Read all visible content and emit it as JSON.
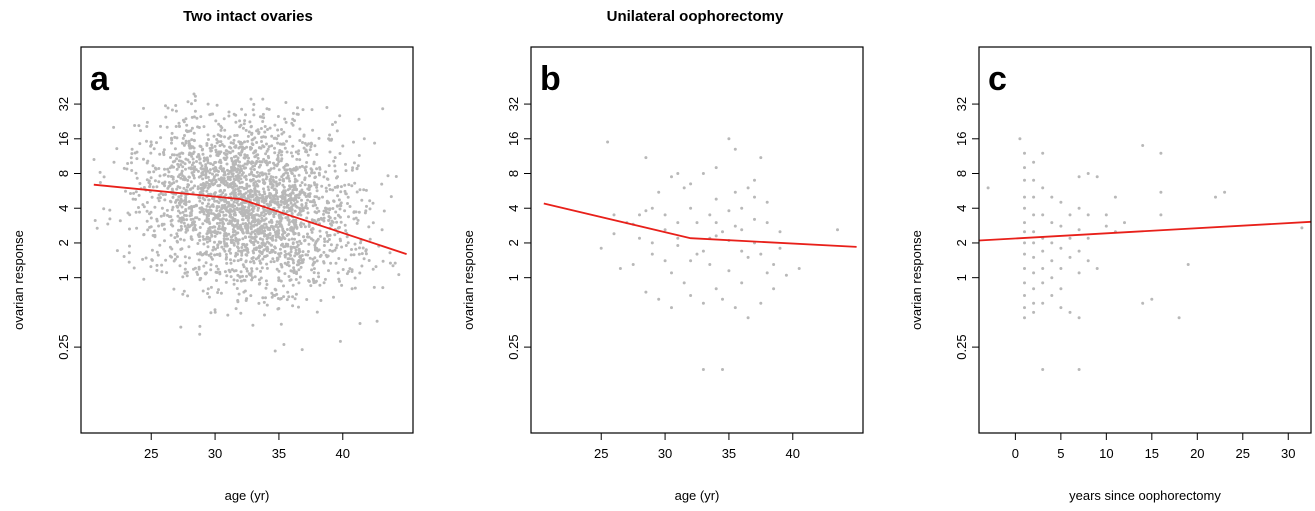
{
  "titles": {
    "left": "Two intact ovaries",
    "right": "Unilateral oophorectomy"
  },
  "colors": {
    "points": "#b8b8b8",
    "trend": "#e8201a",
    "frame": "#000000"
  },
  "chart_data": [
    {
      "type": "scatter",
      "panel": "a",
      "xlabel": "age (yr)",
      "ylabel": "ovarian response",
      "y_scale": "log2",
      "xlim": [
        19.5,
        45.5
      ],
      "ylim": [
        0.045,
        100
      ],
      "x_ticks": [
        25,
        30,
        35,
        40
      ],
      "x_tick_labels": [
        "25",
        "30",
        "35",
        "40"
      ],
      "y_ticks": [
        0.25,
        1,
        2,
        4,
        8,
        16,
        32
      ],
      "y_tick_labels": [
        "0.25",
        "1",
        "2",
        "4",
        "8",
        "16",
        "32"
      ],
      "grid": false,
      "point_cloud": {
        "n": 2600,
        "x_center": 32.5,
        "x_sd": 4.2,
        "log2y_center": 2.1,
        "log2y_sd": 1.25,
        "x_range": [
          20.5,
          45
        ],
        "y_range": [
          0.15,
          40
        ]
      },
      "points": [],
      "trend": {
        "x": [
          20.5,
          32,
          45
        ],
        "y": [
          6.4,
          4.8,
          1.6
        ]
      }
    },
    {
      "type": "scatter",
      "panel": "b",
      "xlabel": "age (yr)",
      "ylabel": "ovarian response",
      "y_scale": "log2",
      "xlim": [
        19.5,
        45.5
      ],
      "ylim": [
        0.045,
        100
      ],
      "x_ticks": [
        25,
        30,
        35,
        40
      ],
      "x_tick_labels": [
        "25",
        "30",
        "35",
        "40"
      ],
      "y_ticks": [
        0.25,
        1,
        2,
        4,
        8,
        16,
        32
      ],
      "y_tick_labels": [
        "0.25",
        "1",
        "2",
        "4",
        "8",
        "16",
        "32"
      ],
      "grid": false,
      "points": [
        [
          25.5,
          15
        ],
        [
          28.5,
          11
        ],
        [
          29.5,
          5.5
        ],
        [
          30.5,
          7.5
        ],
        [
          31,
          8
        ],
        [
          31.5,
          6
        ],
        [
          32,
          6.5
        ],
        [
          33,
          8
        ],
        [
          34,
          9
        ],
        [
          35,
          16
        ],
        [
          35.5,
          13
        ],
        [
          36.5,
          6
        ],
        [
          37,
          5
        ],
        [
          37.5,
          11
        ],
        [
          26,
          3.5
        ],
        [
          27,
          3
        ],
        [
          28,
          3.5
        ],
        [
          28.5,
          3.8
        ],
        [
          29,
          4
        ],
        [
          30,
          3.5
        ],
        [
          31,
          3
        ],
        [
          32,
          4
        ],
        [
          32.5,
          3
        ],
        [
          33.5,
          3.5
        ],
        [
          34,
          3
        ],
        [
          35,
          3.8
        ],
        [
          36,
          4
        ],
        [
          37,
          3.2
        ],
        [
          38,
          4.5
        ],
        [
          25,
          1.8
        ],
        [
          26.5,
          1.2
        ],
        [
          27.5,
          1.3
        ],
        [
          28,
          2.2
        ],
        [
          29,
          1.6
        ],
        [
          30,
          1.4
        ],
        [
          31,
          1.9
        ],
        [
          32,
          1.4
        ],
        [
          33,
          1.7
        ],
        [
          33.5,
          2.2
        ],
        [
          34.5,
          2.5
        ],
        [
          35,
          2.1
        ],
        [
          35.5,
          2.8
        ],
        [
          36,
          1.7
        ],
        [
          36.5,
          1.5
        ],
        [
          37.5,
          1.6
        ],
        [
          38.5,
          1.3
        ],
        [
          39,
          2.5
        ],
        [
          40.5,
          1.2
        ],
        [
          43.5,
          2.6
        ],
        [
          28.5,
          0.75
        ],
        [
          29.5,
          0.65
        ],
        [
          30.5,
          0.55
        ],
        [
          31.5,
          0.9
        ],
        [
          32,
          0.7
        ],
        [
          33,
          0.6
        ],
        [
          34,
          0.8
        ],
        [
          34.5,
          0.65
        ],
        [
          35.5,
          0.55
        ],
        [
          36,
          0.9
        ],
        [
          36.5,
          0.45
        ],
        [
          37.5,
          0.6
        ],
        [
          38.5,
          0.8
        ],
        [
          33,
          0.16
        ],
        [
          34.5,
          0.16
        ],
        [
          30,
          2.6
        ],
        [
          34,
          2.3
        ],
        [
          37,
          2.0
        ],
        [
          38,
          1.1
        ],
        [
          39.5,
          1.05
        ],
        [
          26,
          2.4
        ],
        [
          29,
          2.0
        ],
        [
          31,
          2.2
        ],
        [
          32.5,
          1.6
        ],
        [
          33.5,
          1.3
        ],
        [
          35,
          1.15
        ],
        [
          36,
          2.6
        ],
        [
          38,
          3.0
        ],
        [
          39,
          1.8
        ],
        [
          27.5,
          2.9
        ],
        [
          30.5,
          1.1
        ],
        [
          34,
          4.8
        ],
        [
          35.5,
          5.5
        ],
        [
          37,
          7
        ]
      ],
      "trend": {
        "x": [
          20.5,
          32,
          45
        ],
        "y": [
          4.4,
          2.2,
          1.85
        ]
      }
    },
    {
      "type": "scatter",
      "panel": "c",
      "xlabel": "years since oophorectomy",
      "ylabel": "ovarian response",
      "y_scale": "log2",
      "xlim": [
        -4,
        32.5
      ],
      "ylim": [
        0.045,
        100
      ],
      "x_ticks": [
        0,
        5,
        10,
        15,
        20,
        25,
        30
      ],
      "x_tick_labels": [
        "0",
        "5",
        "10",
        "15",
        "20",
        "25",
        "30"
      ],
      "y_ticks": [
        0.25,
        1,
        2,
        4,
        8,
        16,
        32
      ],
      "y_tick_labels": [
        "0.25",
        "1",
        "2",
        "4",
        "8",
        "16",
        "32"
      ],
      "grid": false,
      "points": [
        [
          0.5,
          16
        ],
        [
          1,
          12
        ],
        [
          1,
          9
        ],
        [
          1,
          7
        ],
        [
          1,
          5
        ],
        [
          1,
          4
        ],
        [
          1,
          3
        ],
        [
          1,
          2.5
        ],
        [
          1,
          2
        ],
        [
          1,
          1.6
        ],
        [
          1,
          1.2
        ],
        [
          1,
          0.9
        ],
        [
          1,
          0.7
        ],
        [
          1,
          0.55
        ],
        [
          1,
          0.45
        ],
        [
          2,
          10
        ],
        [
          2,
          7
        ],
        [
          2,
          5
        ],
        [
          2,
          3.5
        ],
        [
          2,
          2.5
        ],
        [
          2,
          2
        ],
        [
          2,
          1.5
        ],
        [
          2,
          1.1
        ],
        [
          2,
          0.8
        ],
        [
          2,
          0.6
        ],
        [
          2,
          0.5
        ],
        [
          3,
          12
        ],
        [
          3,
          6
        ],
        [
          3,
          3.5
        ],
        [
          3,
          2.2
        ],
        [
          3,
          1.7
        ],
        [
          3,
          1.2
        ],
        [
          3,
          0.9
        ],
        [
          3,
          0.6
        ],
        [
          3,
          0.16
        ],
        [
          4,
          5
        ],
        [
          4,
          3
        ],
        [
          4,
          2
        ],
        [
          4,
          1.4
        ],
        [
          4,
          1.0
        ],
        [
          4,
          0.7
        ],
        [
          5,
          4.5
        ],
        [
          5,
          2.8
        ],
        [
          5,
          1.8
        ],
        [
          5,
          1.2
        ],
        [
          5,
          0.8
        ],
        [
          5,
          0.55
        ],
        [
          6,
          3.5
        ],
        [
          6,
          2.2
        ],
        [
          6,
          1.5
        ],
        [
          6,
          0.5
        ],
        [
          7,
          7.5
        ],
        [
          7,
          4
        ],
        [
          7,
          2.6
        ],
        [
          7,
          1.7
        ],
        [
          7,
          1.1
        ],
        [
          7,
          0.45
        ],
        [
          7,
          0.16
        ],
        [
          8,
          8
        ],
        [
          8,
          3.5
        ],
        [
          8,
          2.2
        ],
        [
          8,
          1.4
        ],
        [
          9,
          7.5
        ],
        [
          9,
          1.2
        ],
        [
          10,
          3.5
        ],
        [
          10,
          2.8
        ],
        [
          11,
          5
        ],
        [
          11,
          2.5
        ],
        [
          12,
          3
        ],
        [
          14,
          14
        ],
        [
          14,
          0.6
        ],
        [
          15,
          0.65
        ],
        [
          16,
          12
        ],
        [
          16,
          5.5
        ],
        [
          16,
          3.5
        ],
        [
          18,
          0.45
        ],
        [
          19,
          1.3
        ],
        [
          22,
          5
        ],
        [
          23,
          5.5
        ],
        [
          31.5,
          2.7
        ],
        [
          -3,
          6
        ]
      ],
      "trend": {
        "x": [
          -4,
          32.5
        ],
        "y": [
          2.1,
          3.05
        ]
      }
    }
  ]
}
